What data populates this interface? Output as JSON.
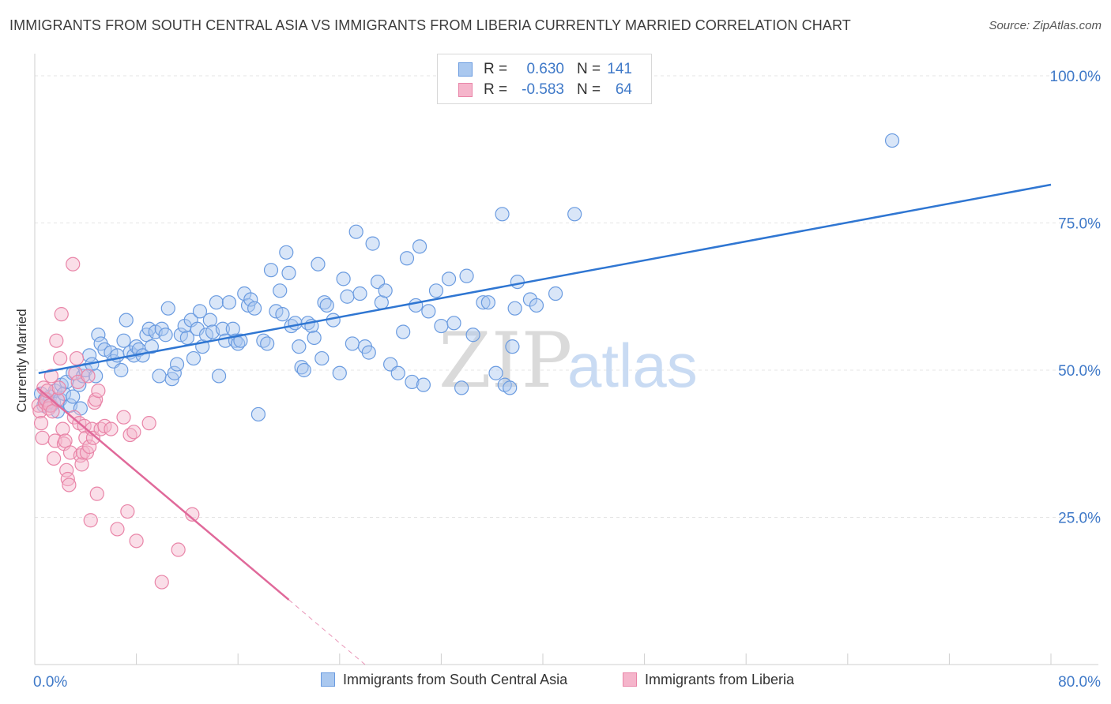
{
  "title": "IMMIGRANTS FROM SOUTH CENTRAL ASIA VS IMMIGRANTS FROM LIBERIA CURRENTLY MARRIED CORRELATION CHART",
  "source": "Source: ZipAtlas.com",
  "watermark": {
    "zip": "ZIP",
    "atlas": "atlas"
  },
  "legend": {
    "series": [
      {
        "r_label": "R =",
        "r_value": "0.630",
        "n_label": "N =",
        "n_value": "141"
      },
      {
        "r_label": "R =",
        "r_value": "-0.583",
        "n_label": "N =",
        "n_value": "64"
      }
    ]
  },
  "bottom_legend": {
    "items": [
      {
        "label": "Immigrants from South Central Asia"
      },
      {
        "label": "Immigrants from Liberia"
      }
    ]
  },
  "colors": {
    "blue_fill": "#aac8ef",
    "blue_stroke": "#6a9be0",
    "blue_line": "#2f76d2",
    "pink_fill": "#f5b5cb",
    "pink_stroke": "#e985a8",
    "pink_line": "#e0699a",
    "value_text": "#3f79c8"
  },
  "chart_data": {
    "type": "scatter",
    "ylabel": "Currently Married",
    "xlim": [
      0,
      80
    ],
    "ylim": [
      0,
      100
    ],
    "x_tick_labels": [
      "0.0%",
      "80.0%"
    ],
    "y_ticks": [
      25,
      50,
      75,
      100
    ],
    "y_tick_labels": [
      "25.0%",
      "50.0%",
      "75.0%",
      "100.0%"
    ],
    "grid": true,
    "series": [
      {
        "name": "Immigrants from South Central Asia",
        "trend": {
          "x0": 0.3,
          "y0": 49.5,
          "x1": 80,
          "y1": 81.5
        },
        "points": [
          [
            0.5,
            46
          ],
          [
            0.7,
            44
          ],
          [
            0.8,
            45
          ],
          [
            1,
            45
          ],
          [
            1.1,
            44.5
          ],
          [
            1.2,
            45.5
          ],
          [
            1.3,
            44
          ],
          [
            1.5,
            44.5
          ],
          [
            1.6,
            46.5
          ],
          [
            1.8,
            43
          ],
          [
            2,
            45
          ],
          [
            2.1,
            47.5
          ],
          [
            2.3,
            46
          ],
          [
            2.5,
            48
          ],
          [
            2.8,
            44
          ],
          [
            3,
            45.5
          ],
          [
            3,
            49.5
          ],
          [
            3.5,
            47.5
          ],
          [
            3.6,
            43.5
          ],
          [
            3.8,
            49
          ],
          [
            4,
            50
          ],
          [
            4.3,
            52.5
          ],
          [
            4.5,
            51
          ],
          [
            4.8,
            49
          ],
          [
            5,
            56
          ],
          [
            5.2,
            54.5
          ],
          [
            5.5,
            53.5
          ],
          [
            6,
            53
          ],
          [
            6.2,
            51.5
          ],
          [
            6.5,
            52.5
          ],
          [
            6.8,
            50
          ],
          [
            7,
            55
          ],
          [
            7.2,
            58.5
          ],
          [
            7.5,
            53
          ],
          [
            7.8,
            52.5
          ],
          [
            8,
            54
          ],
          [
            8.2,
            53.5
          ],
          [
            8.5,
            52.5
          ],
          [
            8.8,
            56
          ],
          [
            9,
            57
          ],
          [
            9.2,
            54
          ],
          [
            9.5,
            56.5
          ],
          [
            9.8,
            49
          ],
          [
            10,
            57
          ],
          [
            10.3,
            56
          ],
          [
            10.5,
            60.5
          ],
          [
            10.8,
            48.5
          ],
          [
            11,
            49.5
          ],
          [
            11.2,
            51
          ],
          [
            11.5,
            56
          ],
          [
            11.8,
            57.5
          ],
          [
            12,
            55.5
          ],
          [
            12.3,
            58.5
          ],
          [
            12.5,
            52
          ],
          [
            12.8,
            57
          ],
          [
            13,
            60
          ],
          [
            13.2,
            54
          ],
          [
            13.5,
            56
          ],
          [
            13.8,
            58.5
          ],
          [
            14,
            56.5
          ],
          [
            14.3,
            61.5
          ],
          [
            14.5,
            49
          ],
          [
            14.8,
            57
          ],
          [
            15,
            55
          ],
          [
            15.3,
            61.5
          ],
          [
            15.6,
            57
          ],
          [
            15.8,
            55
          ],
          [
            16,
            54.5
          ],
          [
            16.2,
            55
          ],
          [
            16.5,
            63
          ],
          [
            16.8,
            61
          ],
          [
            17,
            62
          ],
          [
            17.3,
            60.5
          ],
          [
            17.6,
            42.5
          ],
          [
            18,
            55
          ],
          [
            18.3,
            54.5
          ],
          [
            18.6,
            67
          ],
          [
            19,
            60
          ],
          [
            19.3,
            63.5
          ],
          [
            19.5,
            59.5
          ],
          [
            19.8,
            70
          ],
          [
            20,
            66.5
          ],
          [
            20.2,
            57.5
          ],
          [
            20.5,
            58
          ],
          [
            20.8,
            54
          ],
          [
            21,
            50.5
          ],
          [
            21.2,
            50
          ],
          [
            21.5,
            58
          ],
          [
            21.8,
            57.5
          ],
          [
            22,
            55.5
          ],
          [
            22.3,
            68
          ],
          [
            22.6,
            52
          ],
          [
            22.8,
            61.5
          ],
          [
            23,
            61
          ],
          [
            23.5,
            58.5
          ],
          [
            24,
            49.5
          ],
          [
            24.3,
            65.5
          ],
          [
            24.6,
            62.5
          ],
          [
            25,
            54.5
          ],
          [
            25.3,
            73.5
          ],
          [
            25.6,
            63
          ],
          [
            26,
            54
          ],
          [
            26.3,
            53
          ],
          [
            26.6,
            71.5
          ],
          [
            27,
            65
          ],
          [
            27.3,
            61.5
          ],
          [
            27.6,
            63.5
          ],
          [
            28,
            51
          ],
          [
            28.6,
            49.5
          ],
          [
            29,
            56.5
          ],
          [
            29.3,
            69
          ],
          [
            29.7,
            48
          ],
          [
            30,
            61
          ],
          [
            30.3,
            71
          ],
          [
            30.6,
            47.5
          ],
          [
            31,
            60
          ],
          [
            31.6,
            63.5
          ],
          [
            32,
            57.5
          ],
          [
            32.6,
            65.5
          ],
          [
            33,
            58
          ],
          [
            33.6,
            47
          ],
          [
            34,
            66
          ],
          [
            34.5,
            56
          ],
          [
            35.3,
            61.5
          ],
          [
            35.7,
            61.5
          ],
          [
            36.3,
            49.5
          ],
          [
            36.8,
            76.5
          ],
          [
            37,
            47.5
          ],
          [
            37.4,
            47
          ],
          [
            37.6,
            54
          ],
          [
            37.8,
            60.5
          ],
          [
            38,
            65
          ],
          [
            39,
            62
          ],
          [
            39.5,
            61
          ],
          [
            41,
            63
          ],
          [
            42.5,
            76.5
          ],
          [
            67.5,
            89
          ]
        ]
      },
      {
        "name": "Immigrants from Liberia",
        "trend": {
          "x0": 0.2,
          "y0": 47,
          "x1": 20,
          "y1": 11,
          "x_dash_end": 26,
          "y_dash_end": 0
        },
        "points": [
          [
            0.3,
            44
          ],
          [
            0.4,
            43
          ],
          [
            0.5,
            41
          ],
          [
            0.6,
            38.5
          ],
          [
            0.7,
            47
          ],
          [
            0.8,
            44.5
          ],
          [
            0.9,
            45
          ],
          [
            1,
            46.5
          ],
          [
            1.1,
            43.5
          ],
          [
            1.2,
            44
          ],
          [
            1.3,
            49
          ],
          [
            1.4,
            43
          ],
          [
            1.5,
            35
          ],
          [
            1.6,
            38
          ],
          [
            1.7,
            55
          ],
          [
            1.8,
            45
          ],
          [
            1.9,
            47
          ],
          [
            2,
            52
          ],
          [
            2.1,
            59.5
          ],
          [
            2.2,
            40
          ],
          [
            2.3,
            37.5
          ],
          [
            2.4,
            38
          ],
          [
            2.5,
            33
          ],
          [
            2.6,
            31.5
          ],
          [
            2.7,
            30.5
          ],
          [
            2.8,
            36
          ],
          [
            3,
            68
          ],
          [
            3.1,
            42
          ],
          [
            3.2,
            49.5
          ],
          [
            3.3,
            52
          ],
          [
            3.4,
            48
          ],
          [
            3.5,
            41
          ],
          [
            3.6,
            35.5
          ],
          [
            3.7,
            34
          ],
          [
            3.8,
            36
          ],
          [
            3.9,
            40.5
          ],
          [
            4,
            38.5
          ],
          [
            4.1,
            36
          ],
          [
            4.2,
            49
          ],
          [
            4.3,
            37
          ],
          [
            4.4,
            24.5
          ],
          [
            4.5,
            40
          ],
          [
            4.6,
            38.5
          ],
          [
            4.7,
            44.5
          ],
          [
            4.8,
            45
          ],
          [
            4.9,
            29
          ],
          [
            5,
            46.5
          ],
          [
            5.2,
            40
          ],
          [
            5.5,
            40.5
          ],
          [
            6,
            40
          ],
          [
            6.5,
            23
          ],
          [
            7,
            42
          ],
          [
            7.3,
            26
          ],
          [
            7.5,
            39
          ],
          [
            7.8,
            39.5
          ],
          [
            8,
            21
          ],
          [
            9,
            41
          ],
          [
            10,
            14
          ],
          [
            11.3,
            19.5
          ],
          [
            12.4,
            25.5
          ]
        ]
      }
    ]
  }
}
